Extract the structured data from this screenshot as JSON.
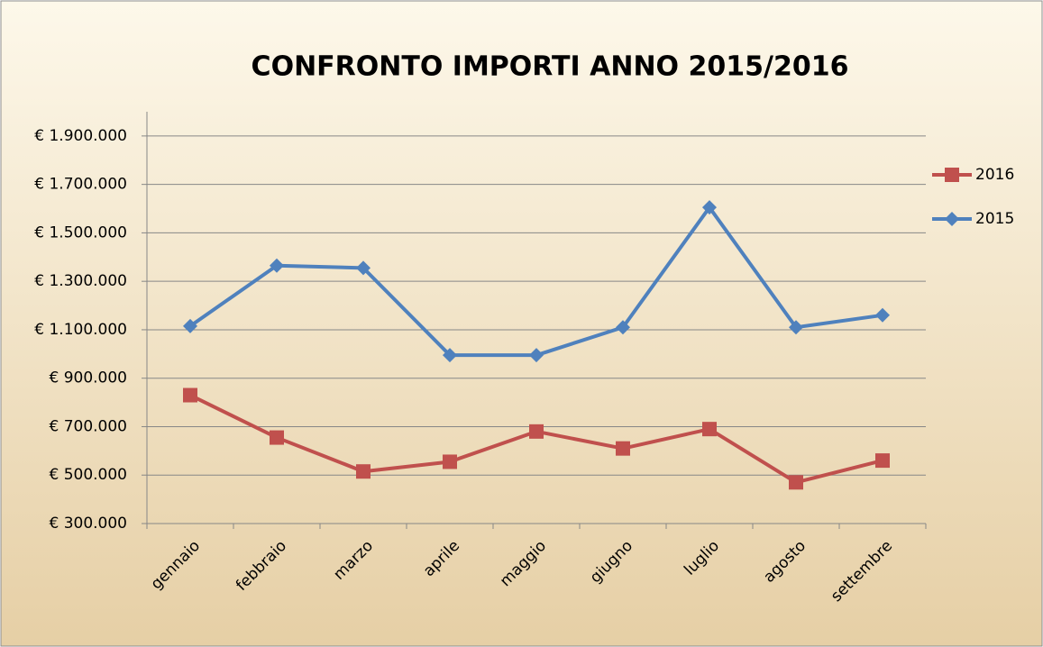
{
  "chart_data": {
    "type": "line",
    "title": "CONFRONTO IMPORTI ANNO 2015/2016",
    "categories": [
      "gennaio",
      "febbraio",
      "marzo",
      "aprile",
      "maggio",
      "giugno",
      "luglio",
      "agosto",
      "settembre"
    ],
    "series": [
      {
        "name": "2016",
        "color": "#c0504d",
        "marker": "square",
        "values": [
          830000,
          655000,
          515000,
          555000,
          680000,
          610000,
          690000,
          470000,
          560000
        ]
      },
      {
        "name": "2015",
        "color": "#4f81bd",
        "marker": "diamond",
        "values": [
          1115000,
          1365000,
          1355000,
          995000,
          995000,
          1110000,
          1605000,
          1110000,
          1160000
        ]
      }
    ],
    "ylim": [
      300000,
      2000000
    ],
    "yticks": [
      {
        "value": 300000,
        "label": "€ 300.000"
      },
      {
        "value": 500000,
        "label": "€ 500.000"
      },
      {
        "value": 700000,
        "label": "€ 700.000"
      },
      {
        "value": 900000,
        "label": "€ 900.000"
      },
      {
        "value": 1100000,
        "label": "€ 1.100.000"
      },
      {
        "value": 1300000,
        "label": "€ 1.300.000"
      },
      {
        "value": 1500000,
        "label": "€ 1.500.000"
      },
      {
        "value": 1700000,
        "label": "€ 1.700.000"
      },
      {
        "value": 1900000,
        "label": "€ 1.900.000"
      }
    ],
    "grid": true,
    "legend": "right"
  }
}
